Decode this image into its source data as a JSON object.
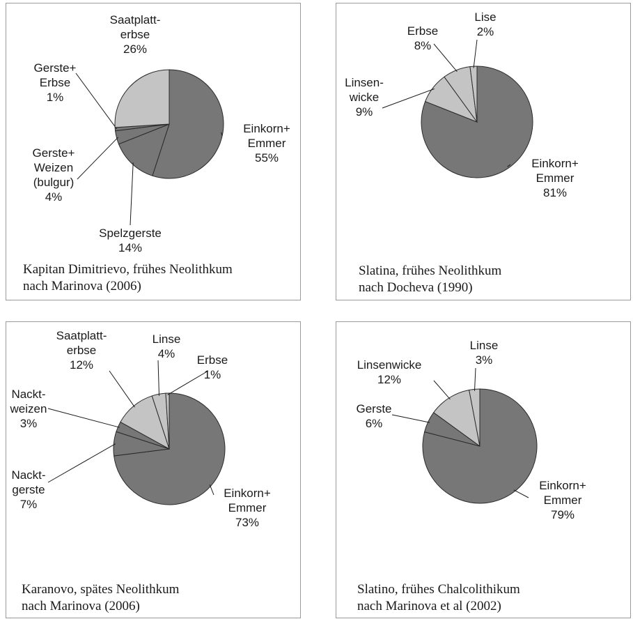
{
  "colors": {
    "dark": "#777777",
    "light": "#c4c4c4",
    "stroke": "#2a2a2a"
  },
  "chart_data": [
    {
      "type": "pie",
      "caption": [
        "Kapitan Dimitrievo, frühes Neolithkum",
        "nach Marinova (2006)"
      ],
      "slices": [
        {
          "label": [
            "Einkorn+",
            "Emmer",
            "55%"
          ],
          "value": 55,
          "fill": "dark"
        },
        {
          "label": [
            "Spelzgerste",
            "14%"
          ],
          "value": 14,
          "fill": "dark"
        },
        {
          "label": [
            "Gerste+",
            "Weizen",
            "(bulgur)",
            "4%"
          ],
          "value": 4,
          "fill": "dark"
        },
        {
          "label": [
            "Gerste+",
            "Erbse",
            "1%"
          ],
          "value": 1,
          "fill": "dark"
        },
        {
          "label": [
            "Saatplatt-",
            "erbse",
            "26%"
          ],
          "value": 26,
          "fill": "light"
        }
      ]
    },
    {
      "type": "pie",
      "caption": [
        "Slatina, frühes Neolithkum",
        "nach Docheva (1990)"
      ],
      "slices": [
        {
          "label": [
            "Einkorn+",
            "Emmer",
            "81%"
          ],
          "value": 81,
          "fill": "dark"
        },
        {
          "label": [
            "Linsen-",
            "wicke",
            "9%"
          ],
          "value": 9,
          "fill": "light"
        },
        {
          "label": [
            "Erbse",
            "8%"
          ],
          "value": 8,
          "fill": "light"
        },
        {
          "label": [
            "Lise",
            "2%"
          ],
          "value": 2,
          "fill": "light"
        }
      ]
    },
    {
      "type": "pie",
      "caption": [
        "Karanovo, spätes Neolithkum",
        "nach Marinova (2006)"
      ],
      "slices": [
        {
          "label": [
            "Einkorn+",
            "Emmer",
            "73%"
          ],
          "value": 73,
          "fill": "dark"
        },
        {
          "label": [
            "Nackt-",
            "gerste",
            "7%"
          ],
          "value": 7,
          "fill": "dark"
        },
        {
          "label": [
            "Nackt-",
            "weizen",
            "3%"
          ],
          "value": 3,
          "fill": "dark"
        },
        {
          "label": [
            "Saatplatt-",
            "erbse",
            "12%"
          ],
          "value": 12,
          "fill": "light"
        },
        {
          "label": [
            "Linse",
            "4%"
          ],
          "value": 4,
          "fill": "light"
        },
        {
          "label": [
            "Erbse",
            "1%"
          ],
          "value": 1,
          "fill": "light"
        }
      ]
    },
    {
      "type": "pie",
      "caption": [
        "Slatino, frühes Chalcolithikum",
        "nach Marinova et al (2002)"
      ],
      "slices": [
        {
          "label": [
            "Einkorn+",
            "Emmer",
            "79%"
          ],
          "value": 79,
          "fill": "dark"
        },
        {
          "label": [
            "Gerste",
            "6%"
          ],
          "value": 6,
          "fill": "dark"
        },
        {
          "label": [
            "Linsenwicke",
            "12%"
          ],
          "value": 12,
          "fill": "light"
        },
        {
          "label": [
            "Linse",
            "3%"
          ],
          "value": 3,
          "fill": "light"
        }
      ]
    }
  ]
}
